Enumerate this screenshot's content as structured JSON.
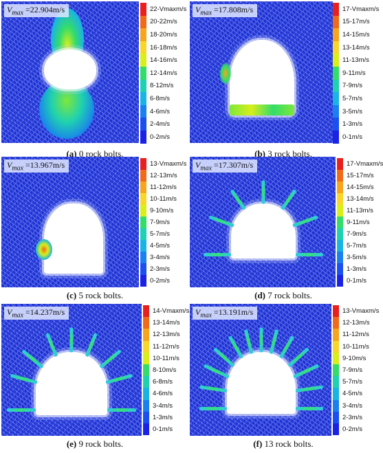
{
  "colors": {
    "field_blue": "#1a2fd6",
    "palette_top_to_bottom": [
      "#e8201e",
      "#f06a1a",
      "#f7a51c",
      "#f8d72a",
      "#d8ef1a",
      "#7ee83a",
      "#34dc6a",
      "#1fd1b0",
      "#1ab4e3",
      "#1a80ef",
      "#1a4ff0",
      "#1a22e6"
    ]
  },
  "panels": [
    {
      "vmax_value": "22.904m/s",
      "legend": [
        "22-Vmaxm/s",
        "20-22m/s",
        "18-20m/s",
        "16-18m/s",
        "14-16m/s",
        "12-14m/s",
        "8-12m/s",
        "6-8m/s",
        "4-6m/s",
        "2-4m/s",
        "0-2m/s"
      ],
      "caption_letter": "(a)",
      "caption_text": " 0 rock bolts."
    },
    {
      "vmax_value": "17.808m/s",
      "legend": [
        "17-Vmaxm/s",
        "15-17m/s",
        "14-15m/s",
        "13-14m/s",
        "11-13m/s",
        "9-11m/s",
        "7-9m/s",
        "5-7m/s",
        "3-5m/s",
        "1-3m/s",
        "0-1m/s"
      ],
      "caption_letter": "(b)",
      "caption_text": " 3 rock bolts."
    },
    {
      "vmax_value": "13.967m/s",
      "legend": [
        "13-Vmaxm/s",
        "12-13m/s",
        "11-12m/s",
        "10-11m/s",
        "9-10m/s",
        "7-9m/s",
        "5-7m/s",
        "4-5m/s",
        "3-4m/s",
        "2-3m/s",
        "0-2m/s"
      ],
      "caption_letter": "(c)",
      "caption_text": " 5 rock bolts."
    },
    {
      "vmax_value": "17.307m/s",
      "legend": [
        "17-Vmaxm/s",
        "15-17m/s",
        "14-15m/s",
        "13-14m/s",
        "11-13m/s",
        "9-11m/s",
        "7-9m/s",
        "5-7m/s",
        "3-5m/s",
        "1-3m/s",
        "0-1m/s"
      ],
      "caption_letter": "(d)",
      "caption_text": " 7 rock bolts."
    },
    {
      "vmax_value": "14.237m/s",
      "legend": [
        "14-Vmaxm/s",
        "13-14m/s",
        "12-13m/s",
        "11-12m/s",
        "10-11m/s",
        "8-10m/s",
        "6-8m/s",
        "4-6m/s",
        "3-4m/s",
        "1-3m/s",
        "0-1m/s"
      ],
      "caption_letter": "(e)",
      "caption_text": " 9 rock bolts."
    },
    {
      "vmax_value": "13.191m/s",
      "legend": [
        "13-Vmaxm/s",
        "12-13m/s",
        "11-12m/s",
        "10-11m/s",
        "9-10m/s",
        "7-9m/s",
        "5-7m/s",
        "4-5m/s",
        "3-4m/s",
        "2-3m/s",
        "0-2m/s"
      ],
      "caption_letter": "(f)",
      "caption_text": " 13 rock bolts."
    }
  ]
}
